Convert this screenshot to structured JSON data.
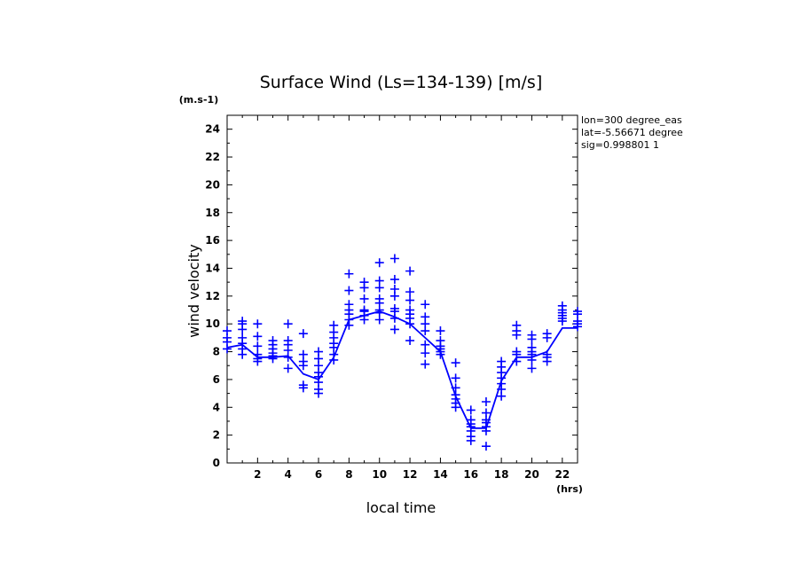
{
  "chart_data": {
    "type": "scatter",
    "title": "Surface Wind  (Ls=134-139) [m/s]",
    "xlabel": "local time",
    "ylabel": "wind velocity",
    "y_unit": "(m.s-1)",
    "x_unit": "(hrs)",
    "xlim": [
      0,
      23
    ],
    "ylim": [
      0,
      25
    ],
    "x_ticks": [
      2,
      4,
      6,
      8,
      10,
      12,
      14,
      16,
      18,
      20,
      22
    ],
    "y_ticks": [
      0,
      2,
      4,
      6,
      8,
      10,
      12,
      14,
      16,
      18,
      20,
      22,
      24
    ],
    "grid": false,
    "info_lines": [
      "lon=300 degree_eas",
      "lat=-5.56671 degree",
      "sig=0.998801 1"
    ],
    "color": "#0000ff",
    "mean_line": {
      "x": [
        0,
        1,
        2,
        3,
        4,
        5,
        6,
        7,
        8,
        9,
        10,
        11,
        12,
        13,
        14,
        15,
        16,
        17,
        18,
        19,
        20,
        21,
        22,
        23
      ],
      "y": [
        8.3,
        8.5,
        7.6,
        7.6,
        7.7,
        6.4,
        6.0,
        7.6,
        10.3,
        10.6,
        10.9,
        10.5,
        10.0,
        9.0,
        8.0,
        4.8,
        2.5,
        2.5,
        5.9,
        7.6,
        7.6,
        8.0,
        9.7,
        9.7
      ]
    },
    "scatter": {
      "x": [
        0,
        0,
        0,
        0,
        1,
        1,
        1,
        1,
        1,
        1,
        1,
        2,
        2,
        2,
        2,
        2,
        2,
        3,
        3,
        3,
        3,
        3,
        3,
        4,
        4,
        4,
        4,
        4,
        4,
        5,
        5,
        5,
        5,
        5,
        5,
        6,
        6,
        6,
        6,
        6,
        6,
        6,
        6,
        7,
        7,
        7,
        7,
        7,
        7,
        7,
        8,
        8,
        8,
        8,
        8,
        8,
        8,
        9,
        9,
        9,
        9,
        9,
        9,
        9,
        10,
        10,
        10,
        10,
        10,
        10,
        10,
        10,
        11,
        11,
        11,
        11,
        11,
        11,
        11,
        11,
        12,
        12,
        12,
        12,
        12,
        12,
        12,
        12,
        13,
        13,
        13,
        13,
        13,
        13,
        13,
        14,
        14,
        14,
        14,
        14,
        14,
        15,
        15,
        15,
        15,
        15,
        15,
        15,
        16,
        16,
        16,
        16,
        16,
        16,
        16,
        17,
        17,
        17,
        17,
        17,
        17,
        17,
        18,
        18,
        18,
        18,
        18,
        18,
        18,
        19,
        19,
        19,
        19,
        19,
        19,
        20,
        20,
        20,
        20,
        20,
        20,
        20,
        21,
        21,
        21,
        21,
        21,
        22,
        22,
        22,
        22,
        22,
        22,
        23,
        23,
        23,
        23,
        23
      ],
      "y": [
        9.5,
        9.0,
        8.7,
        8.2,
        10.2,
        10.0,
        9.6,
        9.0,
        8.6,
        8.2,
        7.8,
        10.0,
        9.1,
        8.4,
        7.8,
        7.5,
        7.3,
        8.8,
        8.5,
        8.2,
        7.9,
        7.7,
        7.5,
        10.0,
        8.8,
        8.5,
        8.1,
        7.6,
        6.8,
        9.3,
        7.8,
        7.3,
        7.0,
        5.6,
        5.4,
        8.0,
        7.5,
        7.0,
        6.5,
        6.2,
        5.8,
        5.3,
        5.0,
        9.9,
        9.4,
        9.0,
        8.6,
        8.3,
        7.8,
        7.4,
        13.6,
        12.4,
        11.4,
        11.0,
        10.7,
        10.3,
        9.9,
        13.0,
        12.6,
        11.8,
        11.0,
        10.9,
        10.6,
        10.3,
        14.4,
        13.1,
        12.6,
        11.8,
        11.5,
        11.0,
        10.8,
        10.3,
        14.7,
        13.2,
        12.5,
        12.0,
        11.1,
        10.9,
        10.4,
        9.6,
        13.8,
        12.3,
        11.7,
        11.0,
        10.7,
        10.4,
        10.0,
        8.8,
        11.4,
        10.5,
        10.0,
        9.5,
        8.5,
        7.9,
        7.1,
        9.5,
        8.8,
        8.4,
        8.2,
        8.0,
        7.8,
        7.2,
        6.1,
        5.4,
        4.9,
        4.6,
        4.3,
        4.0,
        3.8,
        3.1,
        2.8,
        2.6,
        2.3,
        1.9,
        1.6,
        4.4,
        3.6,
        3.1,
        2.9,
        2.6,
        2.3,
        1.2,
        7.3,
        6.9,
        6.5,
        6.1,
        5.7,
        5.3,
        4.8,
        9.9,
        9.5,
        9.2,
        8.0,
        7.8,
        7.3,
        9.2,
        8.9,
        8.3,
        8.0,
        7.8,
        7.4,
        6.8,
        9.3,
        9.0,
        7.8,
        7.6,
        7.3,
        11.3,
        11.0,
        10.8,
        10.6,
        10.4,
        10.2,
        10.9,
        10.7,
        10.2,
        10.0,
        9.8
      ]
    }
  }
}
